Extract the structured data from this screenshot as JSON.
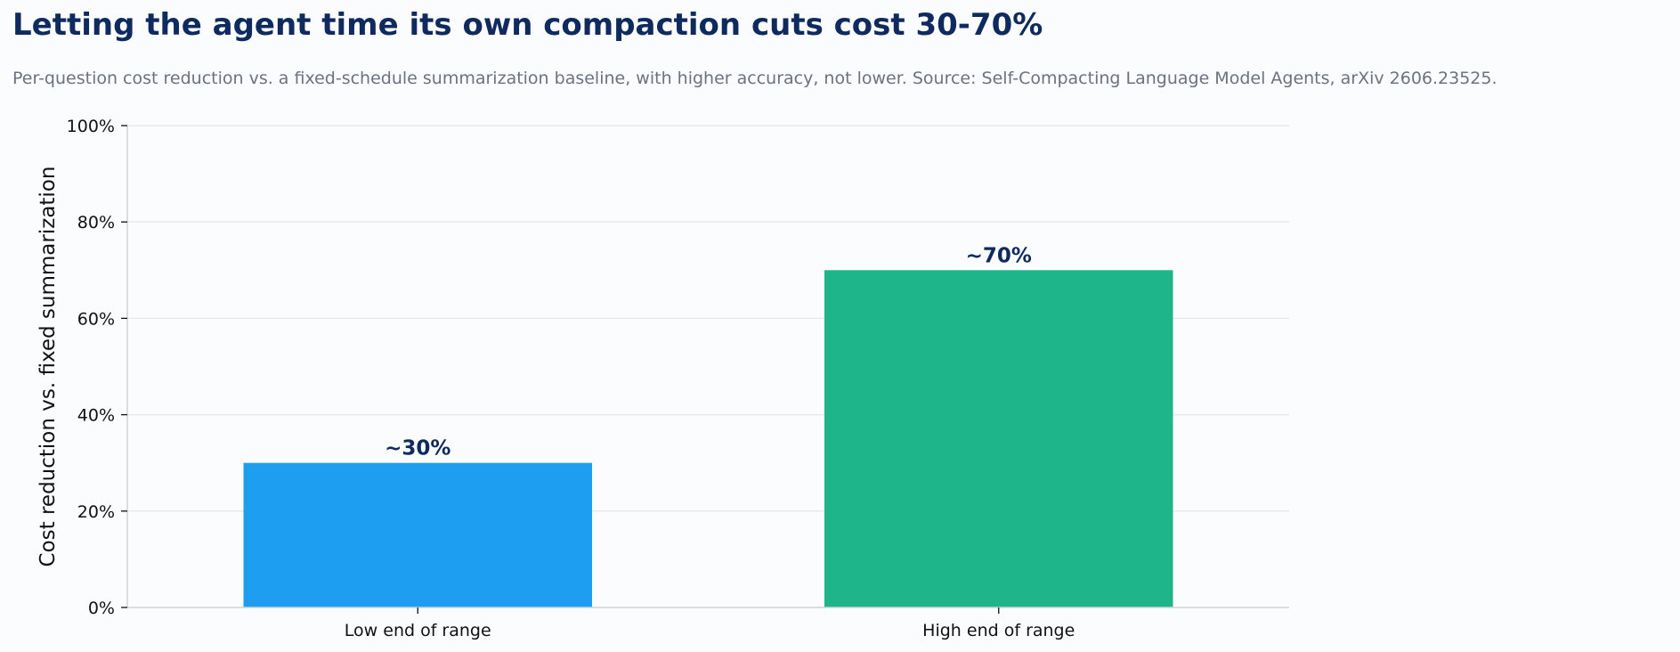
{
  "chart_data": {
    "type": "bar",
    "title": "Letting the agent time its own compaction cuts cost 30-70%",
    "subtitle": "Per-question cost reduction vs. a fixed-schedule summarization baseline, with higher accuracy, not lower. Source: Self-Compacting Language Model Agents, arXiv 2606.23525.",
    "xlabel": "",
    "ylabel": "Cost reduction vs. fixed summarization",
    "categories": [
      "Low end of range",
      "High end of range"
    ],
    "values": [
      30,
      70
    ],
    "data_labels": [
      "~30%",
      "~70%"
    ],
    "bar_colors": [
      "#1d9ef0",
      "#1eb58a"
    ],
    "ylim": [
      0,
      100
    ],
    "yticks": [
      0,
      20,
      40,
      60,
      80,
      100
    ],
    "ytick_labels": [
      "0%",
      "20%",
      "40%",
      "60%",
      "80%",
      "100%"
    ],
    "grid": true,
    "legend": "none"
  }
}
